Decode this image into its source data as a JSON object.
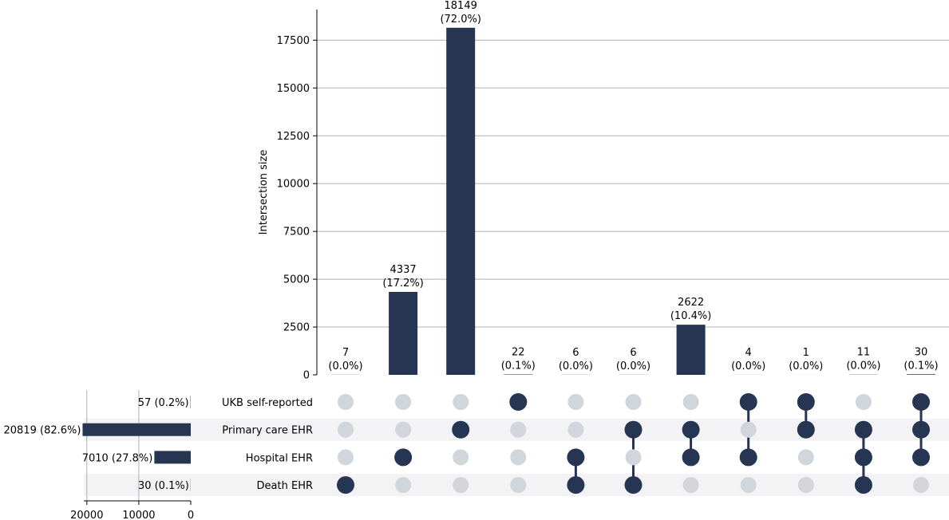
{
  "chart_data": {
    "type": "upset",
    "ylabel": "Intersection size",
    "ylim": [
      0,
      19000
    ],
    "yticks": [
      "0",
      "2500",
      "5000",
      "7500",
      "10000",
      "12500",
      "15000",
      "17500"
    ],
    "set_size_ticks": [
      "20000",
      "10000",
      "0"
    ],
    "sets": [
      {
        "name": "UKB self-reported",
        "size": 57,
        "label": "57 (0.2%)"
      },
      {
        "name": "Primary care EHR",
        "size": 20819,
        "label": "20819 (82.6%)"
      },
      {
        "name": "Hospital EHR",
        "size": 7010,
        "label": "7010 (27.8%)"
      },
      {
        "name": "Death EHR",
        "size": 30,
        "label": "30 (0.1%)"
      }
    ],
    "intersections": [
      {
        "value": 7,
        "count_label": "7",
        "pct_label": "(0.0%)",
        "members": [
          0,
          0,
          0,
          1
        ]
      },
      {
        "value": 4337,
        "count_label": "4337",
        "pct_label": "(17.2%)",
        "members": [
          0,
          0,
          1,
          0
        ]
      },
      {
        "value": 18149,
        "count_label": "18149",
        "pct_label": "(72.0%)",
        "members": [
          0,
          1,
          0,
          0
        ]
      },
      {
        "value": 22,
        "count_label": "22",
        "pct_label": "(0.1%)",
        "members": [
          1,
          0,
          0,
          0
        ]
      },
      {
        "value": 6,
        "count_label": "6",
        "pct_label": "(0.0%)",
        "members": [
          0,
          0,
          1,
          1
        ]
      },
      {
        "value": 6,
        "count_label": "6",
        "pct_label": "(0.0%)",
        "members": [
          0,
          1,
          0,
          1
        ]
      },
      {
        "value": 2622,
        "count_label": "2622",
        "pct_label": "(10.4%)",
        "members": [
          0,
          1,
          1,
          0
        ]
      },
      {
        "value": 4,
        "count_label": "4",
        "pct_label": "(0.0%)",
        "members": [
          1,
          0,
          1,
          0
        ]
      },
      {
        "value": 1,
        "count_label": "1",
        "pct_label": "(0.0%)",
        "members": [
          1,
          1,
          0,
          0
        ]
      },
      {
        "value": 11,
        "count_label": "11",
        "pct_label": "(0.0%)",
        "members": [
          0,
          1,
          1,
          1
        ]
      },
      {
        "value": 30,
        "count_label": "30",
        "pct_label": "(0.1%)",
        "members": [
          1,
          1,
          1,
          0
        ]
      }
    ],
    "colors": {
      "bar": "#263552",
      "dot_off": "#d1d5dc",
      "stripe": "#f3f3f5",
      "grid": "#b0b0b0"
    }
  }
}
